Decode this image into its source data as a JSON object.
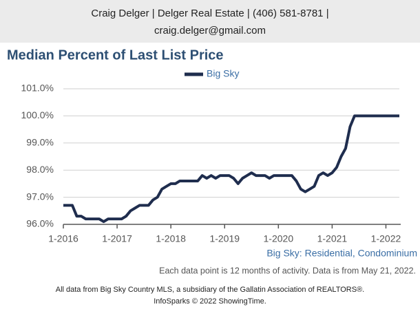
{
  "chart_data": {
    "type": "line",
    "header": [
      "Craig Delger | Delger Real Estate | (406) 581-8781 |",
      "craig.delger@gmail.com"
    ],
    "title": "Median Percent of Last List Price",
    "subtitle": "Big Sky: Residential, Condominium",
    "note": "Each data point is 12 months of activity. Data is from May 21, 2022.",
    "source": [
      "All data from Big Sky Country MLS, a subsidiary of the Gallatin Association of REALTORS®.",
      "InfoSparks © 2022 ShowingTime."
    ],
    "categories": [
      "1-2016",
      null,
      null,
      null,
      null,
      null,
      null,
      null,
      null,
      null,
      null,
      null,
      "1-2017",
      null,
      null,
      null,
      null,
      null,
      null,
      null,
      null,
      null,
      null,
      null,
      "1-2018",
      null,
      null,
      null,
      null,
      null,
      null,
      null,
      null,
      null,
      null,
      null,
      "1-2019",
      null,
      null,
      null,
      null,
      null,
      null,
      null,
      null,
      null,
      null,
      null,
      "1-2020",
      null,
      null,
      null,
      null,
      null,
      null,
      null,
      null,
      null,
      null,
      null,
      "1-2021",
      null,
      null,
      null,
      null,
      null,
      null,
      null,
      null,
      null,
      null,
      null,
      "1-2022",
      null,
      null,
      null
    ],
    "series": [
      {
        "name": "Big Sky",
        "color": "#1f2d4e",
        "values": [
          96.7,
          96.7,
          96.7,
          96.3,
          96.3,
          96.2,
          96.2,
          96.2,
          96.2,
          96.1,
          96.2,
          96.2,
          96.2,
          96.2,
          96.3,
          96.5,
          96.6,
          96.7,
          96.7,
          96.7,
          96.9,
          97.0,
          97.3,
          97.4,
          97.5,
          97.5,
          97.6,
          97.6,
          97.6,
          97.6,
          97.6,
          97.8,
          97.7,
          97.8,
          97.7,
          97.8,
          97.8,
          97.8,
          97.7,
          97.5,
          97.7,
          97.8,
          97.9,
          97.8,
          97.8,
          97.8,
          97.7,
          97.8,
          97.8,
          97.8,
          97.8,
          97.8,
          97.6,
          97.3,
          97.2,
          97.3,
          97.4,
          97.8,
          97.9,
          97.8,
          97.9,
          98.1,
          98.5,
          98.8,
          99.6,
          100,
          100,
          100,
          100,
          100,
          100,
          100,
          100,
          100,
          100,
          100
        ]
      }
    ],
    "ylim": [
      96,
      101
    ],
    "yticks": [
      {
        "value": 96,
        "label": "96.0%"
      },
      {
        "value": 97,
        "label": "97.0%"
      },
      {
        "value": 98,
        "label": "98.0%"
      },
      {
        "value": 99,
        "label": "99.0%"
      },
      {
        "value": 100,
        "label": "100.0%"
      },
      {
        "value": 101,
        "label": "101.0%"
      }
    ],
    "grid": true
  }
}
